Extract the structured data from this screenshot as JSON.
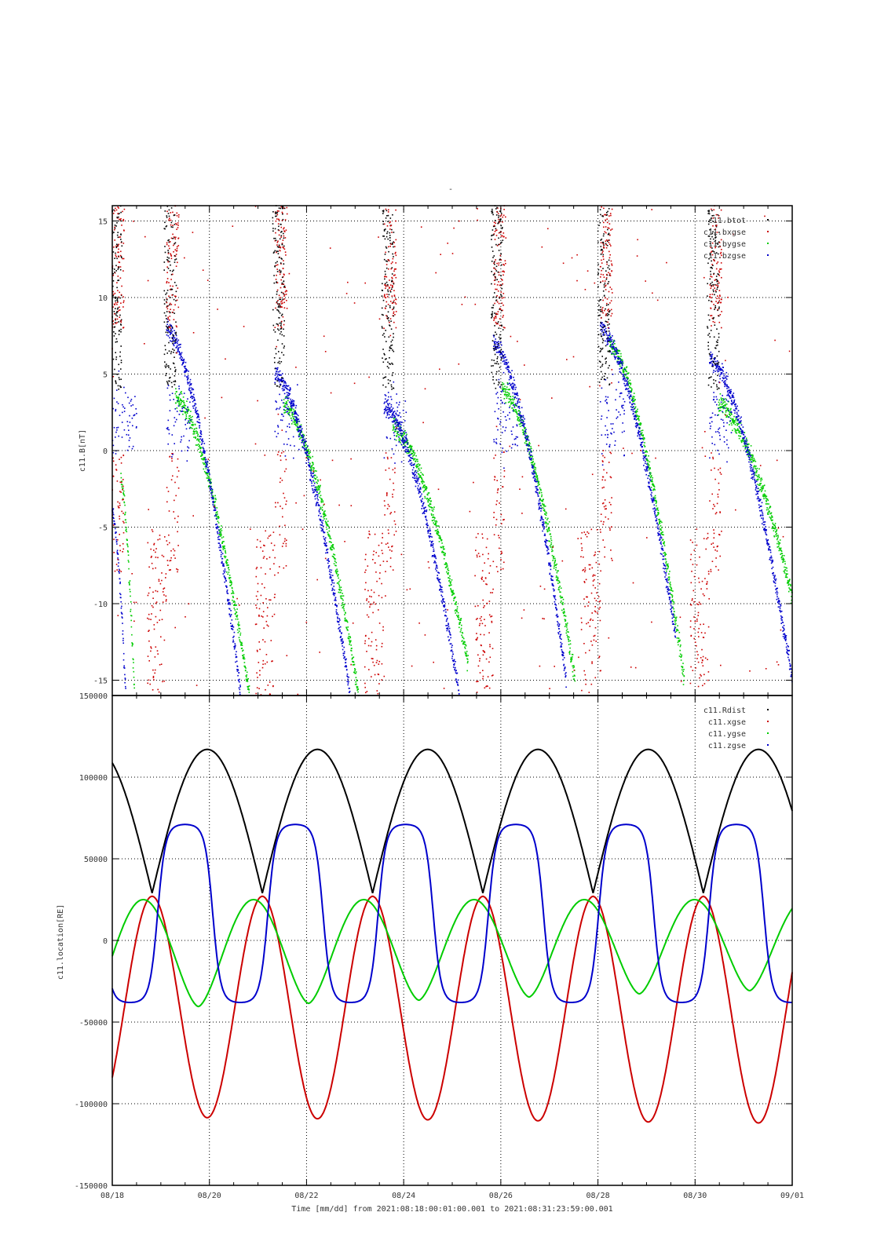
{
  "title": "-",
  "xaxis": {
    "label": "Time [mm/dd]  from 2021:08:18:00:01:00.001  to  2021:08:31:23:59:00.001",
    "ticks": [
      "08/18",
      "08/20",
      "08/22",
      "08/24",
      "08/26",
      "08/28",
      "08/30",
      "09/01"
    ],
    "range_days": [
      0,
      14
    ]
  },
  "colors": {
    "black": "#000000",
    "red": "#cc0000",
    "green": "#00cc00",
    "blue": "#0000cc"
  },
  "chart_data": [
    {
      "type": "scatter",
      "name": "panel-magnetic-field",
      "ylabel": "c11.B[nT]",
      "ylim": [
        -16,
        16
      ],
      "yticks": [
        "15",
        "10",
        "5",
        "0",
        "-5",
        "-10",
        "-15"
      ],
      "ytick_values": [
        15,
        10,
        5,
        0,
        -5,
        -10,
        -15
      ],
      "grid": true,
      "legend_position": "top-right",
      "series": [
        {
          "name": "c11.btot",
          "color": "#000000"
        },
        {
          "name": "c11.bxgse",
          "color": "#cc0000"
        },
        {
          "name": "c11.bygse",
          "color": "#00cc00"
        },
        {
          "name": "c11.bzgse",
          "color": "#0000cc"
        }
      ],
      "orbits": [
        {
          "start": 0.0,
          "end": 0.28,
          "bz_start": -4.0,
          "bz_end": -16,
          "by_start": -2.0,
          "by_end": -16
        },
        {
          "start": 1.12,
          "end": 2.65,
          "bz_start": 8.0,
          "bz_end": -16,
          "by_start": 3.5,
          "by_end": -16
        },
        {
          "start": 3.35,
          "end": 4.9,
          "bz_start": 5.0,
          "bz_end": -16,
          "by_start": 3.0,
          "by_end": -16
        },
        {
          "start": 5.6,
          "end": 7.15,
          "bz_start": 3.0,
          "bz_end": -16,
          "by_start": 1.5,
          "by_end": -14
        },
        {
          "start": 7.85,
          "end": 9.35,
          "bz_start": 7.0,
          "bz_end": -15,
          "by_start": 4.0,
          "by_end": -15
        },
        {
          "start": 10.05,
          "end": 11.6,
          "bz_start": 8.0,
          "bz_end": -12,
          "by_start": 7.0,
          "by_end": -15
        },
        {
          "start": 12.3,
          "end": 14.0,
          "bz_start": 6.0,
          "bz_end": -15,
          "by_start": 3.0,
          "by_end": -12
        }
      ]
    },
    {
      "type": "line",
      "name": "panel-location",
      "ylabel": "c11.location[RE]",
      "ylim": [
        -150000,
        150000
      ],
      "yticks": [
        "150000",
        "100000",
        "50000",
        "0",
        "-50000",
        "-100000",
        "-150000"
      ],
      "ytick_values": [
        150000,
        100000,
        50000,
        0,
        -50000,
        -100000,
        -150000
      ],
      "grid": true,
      "legend_position": "top-right",
      "period_days": 2.27,
      "perigee_days": [
        0.82,
        3.09,
        5.36,
        7.63,
        9.9,
        12.17
      ],
      "series": [
        {
          "name": "c11.Rdist",
          "color": "#000000",
          "min": 29000,
          "max": 117000
        },
        {
          "name": "c11.xgse",
          "color": "#cc0000",
          "min": -108000,
          "max": 27000
        },
        {
          "name": "c11.ygse",
          "color": "#00cc00",
          "min": -42000,
          "max": 25000
        },
        {
          "name": "c11.zgse",
          "color": "#0000cc",
          "min": -38000,
          "max": 71000
        }
      ]
    }
  ]
}
